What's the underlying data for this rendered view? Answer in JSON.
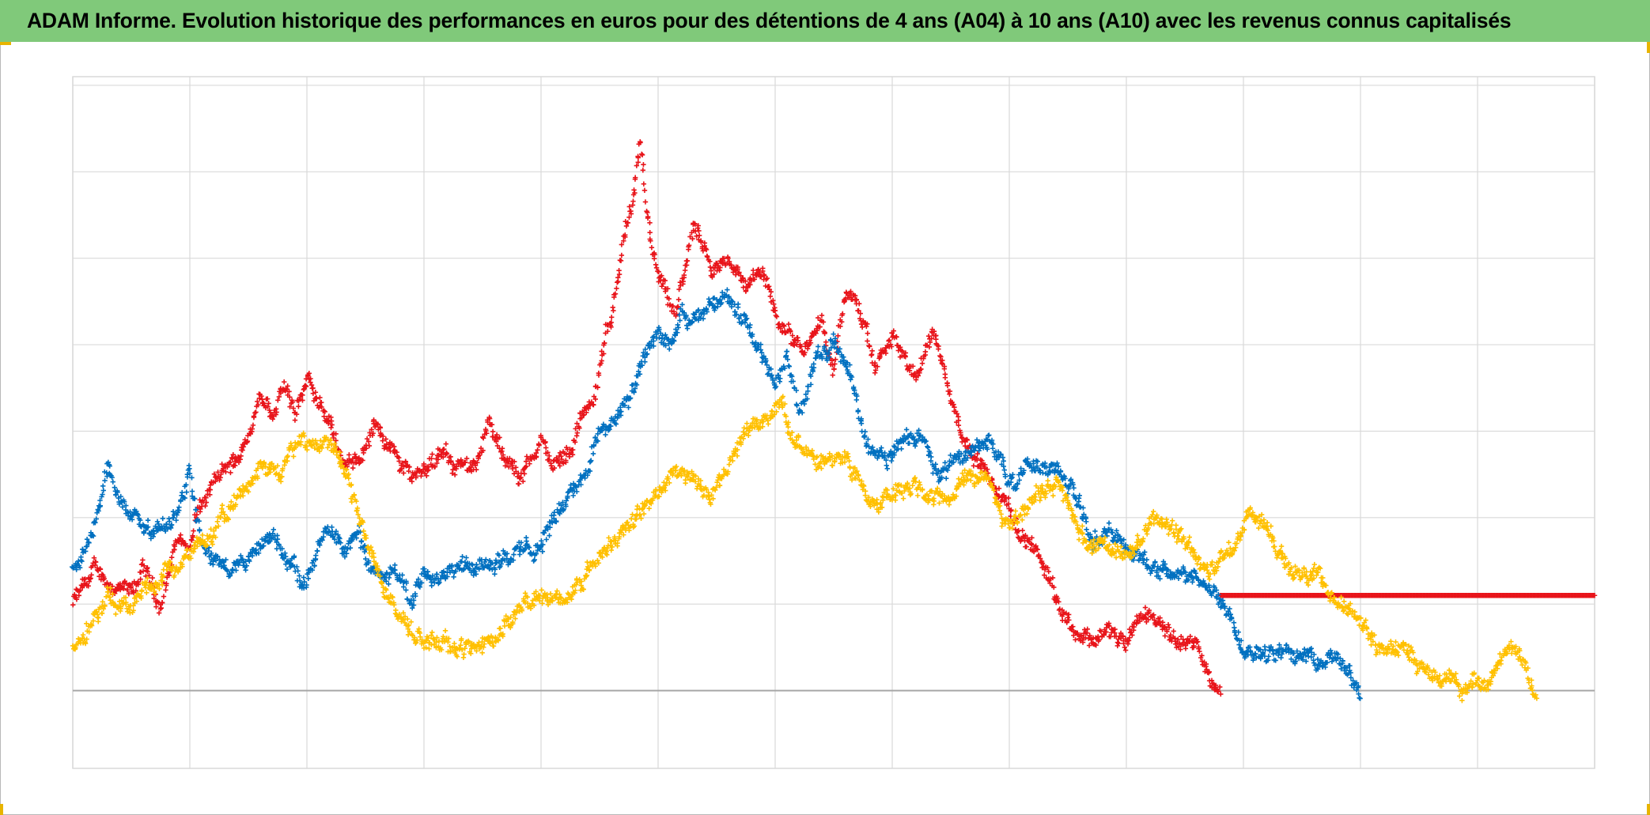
{
  "title": "ADAM Informe. Evolution historique des performances en euros pour des détentions de 4 ans (A04) à 10 ans (A10) avec les revenus connus capitalisés",
  "colors": {
    "title_bg": "#80c97a",
    "corner": "#e8b400",
    "grid": "#d9d9d9",
    "zero_line": "#a6a6a6"
  },
  "chart_data": {
    "type": "scatter",
    "marker": "cross",
    "title": "ADAM Informe. Evolution historique des performances en euros pour des détentions de 4 ans (A04) à 10 ans (A10) avec les revenus connus capitalisés",
    "xlabel": "",
    "ylabel": "",
    "x_unit": "period index",
    "xlim": [
      0,
      13
    ],
    "ylim": [
      -0.9,
      7.1
    ],
    "x_gridlines": 13,
    "y_gridlines": [
      0,
      1,
      2,
      3,
      4,
      5,
      6,
      7
    ],
    "zero_line_y": 0,
    "tick_labels_visible": false,
    "legend": "none",
    "series": [
      {
        "name": "red",
        "color": "#e8141a",
        "x": [
          0,
          0.2,
          0.35,
          0.5,
          0.6,
          0.75,
          0.9,
          1.0,
          1.05,
          1.1,
          1.2,
          1.35,
          1.5,
          1.6,
          1.7,
          1.8,
          1.9,
          2.0,
          2.1,
          2.2,
          2.3,
          2.4,
          2.6,
          2.75,
          2.9,
          3.0,
          3.2,
          3.4,
          3.55,
          3.7,
          3.85,
          4.0,
          4.1,
          4.25,
          4.35,
          4.45,
          4.5,
          4.62,
          4.72,
          4.8,
          4.85,
          4.95,
          5.05,
          5.15,
          5.3,
          5.45,
          5.6,
          5.75,
          5.9,
          6.05,
          6.25,
          6.4,
          6.5,
          6.6,
          6.7,
          6.85,
          7.0,
          7.2,
          7.35,
          7.5,
          7.65,
          7.8,
          7.95,
          8.1,
          8.25,
          8.4,
          8.55,
          8.7,
          8.85,
          9.0,
          9.15,
          9.3,
          9.45,
          9.6,
          9.7,
          9.8
        ],
        "y": [
          1.0,
          1.4,
          1.2,
          1.1,
          1.4,
          1.0,
          1.8,
          1.6,
          2.0,
          2.1,
          2.4,
          2.6,
          2.9,
          3.5,
          3.2,
          3.5,
          3.2,
          3.6,
          3.3,
          3.1,
          2.7,
          2.6,
          3.1,
          2.7,
          2.5,
          2.6,
          2.7,
          2.5,
          3.1,
          2.6,
          2.5,
          2.9,
          2.6,
          2.8,
          3.2,
          3.3,
          3.7,
          4.5,
          5.3,
          5.7,
          6.3,
          5.0,
          4.6,
          4.3,
          5.4,
          4.8,
          5.0,
          4.7,
          4.8,
          4.2,
          4.0,
          4.3,
          3.7,
          4.6,
          4.5,
          3.7,
          4.1,
          3.6,
          4.2,
          3.4,
          2.8,
          2.5,
          2.2,
          1.8,
          1.6,
          1.1,
          0.7,
          0.6,
          0.7,
          0.5,
          0.9,
          0.8,
          0.6,
          0.5,
          0.2,
          0.0
        ],
        "flat_tail": {
          "from_x": 9.8,
          "to_x": 13.0,
          "y": 1.1
        }
      },
      {
        "name": "blue",
        "color": "#0070c0",
        "x": [
          0,
          0.1,
          0.2,
          0.3,
          0.4,
          0.5,
          0.6,
          0.7,
          0.8,
          0.9,
          1.0,
          1.1,
          1.2,
          1.3,
          1.5,
          1.7,
          1.85,
          2.0,
          2.15,
          2.3,
          2.45,
          2.6,
          2.75,
          2.9,
          3.0,
          3.2,
          3.4,
          3.6,
          3.8,
          4.0,
          4.15,
          4.3,
          4.4,
          4.5,
          4.6,
          4.7,
          4.8,
          4.9,
          5.0,
          5.1,
          5.2,
          5.3,
          5.45,
          5.6,
          5.75,
          5.9,
          6.0,
          6.1,
          6.2,
          6.35,
          6.5,
          6.65,
          6.8,
          6.95,
          7.1,
          7.25,
          7.4,
          7.55,
          7.7,
          7.85,
          8.0,
          8.15,
          8.3,
          8.45,
          8.55,
          8.7,
          8.85,
          9.0,
          9.2,
          9.4,
          9.6,
          9.8,
          10.0,
          10.2,
          10.4,
          10.6,
          10.8,
          11.0
        ],
        "y": [
          1.4,
          1.6,
          2.0,
          2.6,
          2.2,
          2.0,
          2.0,
          1.8,
          1.9,
          2.1,
          2.6,
          1.8,
          1.5,
          1.4,
          1.5,
          1.8,
          1.5,
          1.3,
          1.8,
          1.6,
          1.8,
          1.3,
          1.4,
          1.0,
          1.4,
          1.4,
          1.5,
          1.5,
          1.6,
          1.7,
          2.1,
          2.4,
          2.6,
          3.0,
          3.1,
          3.3,
          3.5,
          3.9,
          4.2,
          4.0,
          4.3,
          4.2,
          4.5,
          4.6,
          4.2,
          3.8,
          3.5,
          3.9,
          3.2,
          3.8,
          4.1,
          3.6,
          2.8,
          2.7,
          2.9,
          3.0,
          2.5,
          2.7,
          2.8,
          2.9,
          2.4,
          2.6,
          2.6,
          2.5,
          2.3,
          1.8,
          1.8,
          1.7,
          1.4,
          1.4,
          1.3,
          1.1,
          0.5,
          0.5,
          0.4,
          0.4,
          0.35,
          0.0
        ]
      },
      {
        "name": "yellow",
        "color": "#ffc000",
        "x": [
          0,
          0.15,
          0.3,
          0.45,
          0.6,
          0.75,
          0.9,
          1.0,
          1.2,
          1.4,
          1.6,
          1.75,
          1.9,
          2.05,
          2.2,
          2.35,
          2.5,
          2.65,
          2.8,
          3.0,
          3.2,
          3.4,
          3.6,
          3.8,
          4.0,
          4.2,
          4.4,
          4.6,
          4.8,
          5.0,
          5.15,
          5.3,
          5.45,
          5.6,
          5.75,
          5.9,
          6.05,
          6.2,
          6.4,
          6.6,
          6.8,
          7.0,
          7.2,
          7.35,
          7.5,
          7.65,
          7.8,
          7.95,
          8.1,
          8.25,
          8.4,
          8.55,
          8.7,
          8.85,
          9.0,
          9.15,
          9.3,
          9.45,
          9.6,
          9.75,
          9.9,
          10.05,
          10.2,
          10.35,
          10.5,
          10.65,
          10.8,
          10.95,
          11.1,
          11.25,
          11.4,
          11.55,
          11.7,
          11.85,
          12.0,
          12.15,
          12.3,
          12.5
        ],
        "y": [
          0.5,
          0.8,
          1.1,
          0.9,
          1.2,
          1.3,
          1.4,
          1.6,
          1.8,
          2.2,
          2.6,
          2.5,
          2.8,
          2.9,
          2.9,
          2.4,
          1.8,
          1.2,
          0.8,
          0.6,
          0.5,
          0.5,
          0.6,
          0.9,
          1.1,
          1.0,
          1.4,
          1.7,
          2.0,
          2.3,
          2.6,
          2.4,
          2.2,
          2.6,
          3.0,
          3.1,
          3.3,
          2.8,
          2.6,
          2.7,
          2.2,
          2.3,
          2.4,
          2.3,
          2.2,
          2.5,
          2.5,
          2.0,
          2.0,
          2.3,
          2.4,
          2.0,
          1.6,
          1.7,
          1.5,
          1.8,
          2.0,
          1.8,
          1.5,
          1.4,
          1.6,
          2.1,
          1.9,
          1.5,
          1.3,
          1.4,
          1.0,
          0.9,
          0.6,
          0.5,
          0.4,
          0.3,
          0.2,
          0.0,
          0.1,
          0.2,
          0.5,
          0.0
        ]
      }
    ]
  }
}
